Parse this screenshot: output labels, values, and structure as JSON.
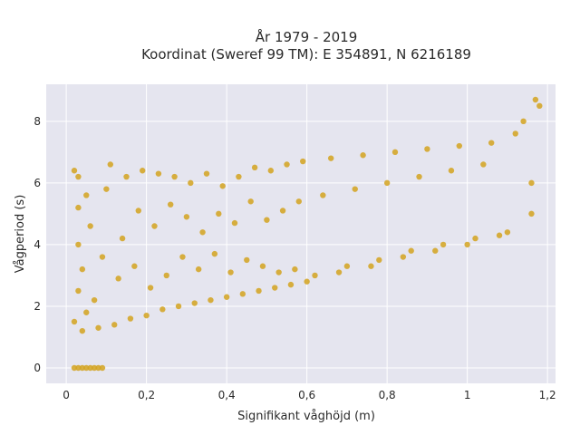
{
  "chart_data": {
    "type": "scatter",
    "title_line1": "År 1979 - 2019",
    "title_line2": "Koordinat (Sweref 99 TM): E 354891, N 6216189",
    "xlabel": "Signifikant våghöjd (m)",
    "ylabel": "Vågperiod (s)",
    "xlim": [
      -0.05,
      1.22
    ],
    "ylim": [
      -0.5,
      9.2
    ],
    "x_ticks": [
      0,
      0.2,
      0.4,
      0.6,
      0.8,
      1,
      1.2
    ],
    "x_tick_labels": [
      "0",
      "0,2",
      "0,4",
      "0,6",
      "0,8",
      "1",
      "1,2"
    ],
    "y_ticks": [
      0,
      2,
      4,
      6,
      8
    ],
    "y_tick_labels": [
      "0",
      "2",
      "4",
      "6",
      "8"
    ],
    "grid": true,
    "legend": "none",
    "marker_color": "#d4a31f",
    "background_color": "#e5e5ef",
    "series": [
      {
        "description_points": "digitized approximation of dense cloud",
        "points": [
          [
            0.02,
            0.0
          ],
          [
            0.03,
            0.0
          ],
          [
            0.04,
            0.0
          ],
          [
            0.05,
            0.0
          ],
          [
            0.06,
            0.0
          ],
          [
            0.07,
            0.0
          ],
          [
            0.08,
            0.0
          ],
          [
            0.09,
            0.0
          ],
          [
            0.02,
            1.5
          ],
          [
            0.03,
            2.5
          ],
          [
            0.03,
            4.0
          ],
          [
            0.03,
            5.2
          ],
          [
            0.02,
            6.4
          ],
          [
            0.03,
            6.2
          ],
          [
            0.04,
            3.2
          ],
          [
            0.04,
            1.2
          ],
          [
            0.05,
            1.8
          ],
          [
            0.05,
            5.6
          ],
          [
            0.06,
            4.6
          ],
          [
            0.07,
            2.2
          ],
          [
            0.08,
            1.3
          ],
          [
            0.09,
            3.6
          ],
          [
            0.1,
            5.8
          ],
          [
            0.11,
            6.6
          ],
          [
            0.12,
            1.4
          ],
          [
            0.13,
            2.9
          ],
          [
            0.14,
            4.2
          ],
          [
            0.15,
            6.2
          ],
          [
            0.16,
            1.6
          ],
          [
            0.17,
            3.3
          ],
          [
            0.18,
            5.1
          ],
          [
            0.19,
            6.4
          ],
          [
            0.2,
            1.7
          ],
          [
            0.21,
            2.6
          ],
          [
            0.22,
            4.6
          ],
          [
            0.23,
            6.3
          ],
          [
            0.24,
            1.9
          ],
          [
            0.25,
            3.0
          ],
          [
            0.26,
            5.3
          ],
          [
            0.27,
            6.2
          ],
          [
            0.28,
            2.0
          ],
          [
            0.29,
            3.6
          ],
          [
            0.3,
            4.9
          ],
          [
            0.31,
            6.0
          ],
          [
            0.32,
            2.1
          ],
          [
            0.33,
            3.2
          ],
          [
            0.34,
            4.4
          ],
          [
            0.35,
            6.3
          ],
          [
            0.36,
            2.2
          ],
          [
            0.37,
            3.7
          ],
          [
            0.38,
            5.0
          ],
          [
            0.39,
            5.9
          ],
          [
            0.4,
            2.3
          ],
          [
            0.41,
            3.1
          ],
          [
            0.42,
            4.7
          ],
          [
            0.43,
            6.2
          ],
          [
            0.44,
            2.4
          ],
          [
            0.45,
            3.5
          ],
          [
            0.46,
            5.4
          ],
          [
            0.47,
            6.5
          ],
          [
            0.48,
            2.5
          ],
          [
            0.49,
            3.3
          ],
          [
            0.5,
            4.8
          ],
          [
            0.51,
            6.4
          ],
          [
            0.52,
            2.6
          ],
          [
            0.53,
            3.1
          ],
          [
            0.54,
            5.1
          ],
          [
            0.55,
            6.6
          ],
          [
            0.56,
            2.7
          ],
          [
            0.57,
            3.2
          ],
          [
            0.58,
            5.4
          ],
          [
            0.59,
            6.7
          ],
          [
            0.6,
            2.8
          ],
          [
            0.62,
            3.0
          ],
          [
            0.64,
            5.6
          ],
          [
            0.66,
            6.8
          ],
          [
            0.68,
            3.1
          ],
          [
            0.7,
            3.3
          ],
          [
            0.72,
            5.8
          ],
          [
            0.74,
            6.9
          ],
          [
            0.76,
            3.3
          ],
          [
            0.78,
            3.5
          ],
          [
            0.8,
            6.0
          ],
          [
            0.82,
            7.0
          ],
          [
            0.84,
            3.6
          ],
          [
            0.86,
            3.8
          ],
          [
            0.88,
            6.2
          ],
          [
            0.9,
            7.1
          ],
          [
            0.92,
            3.8
          ],
          [
            0.94,
            4.0
          ],
          [
            0.96,
            6.4
          ],
          [
            0.98,
            7.2
          ],
          [
            1.0,
            4.0
          ],
          [
            1.02,
            4.2
          ],
          [
            1.04,
            6.6
          ],
          [
            1.06,
            7.3
          ],
          [
            1.08,
            4.3
          ],
          [
            1.1,
            4.4
          ],
          [
            1.12,
            7.6
          ],
          [
            1.14,
            8.0
          ],
          [
            1.16,
            5.0
          ],
          [
            1.17,
            8.7
          ],
          [
            1.18,
            8.5
          ],
          [
            1.16,
            6.0
          ]
        ]
      }
    ]
  }
}
